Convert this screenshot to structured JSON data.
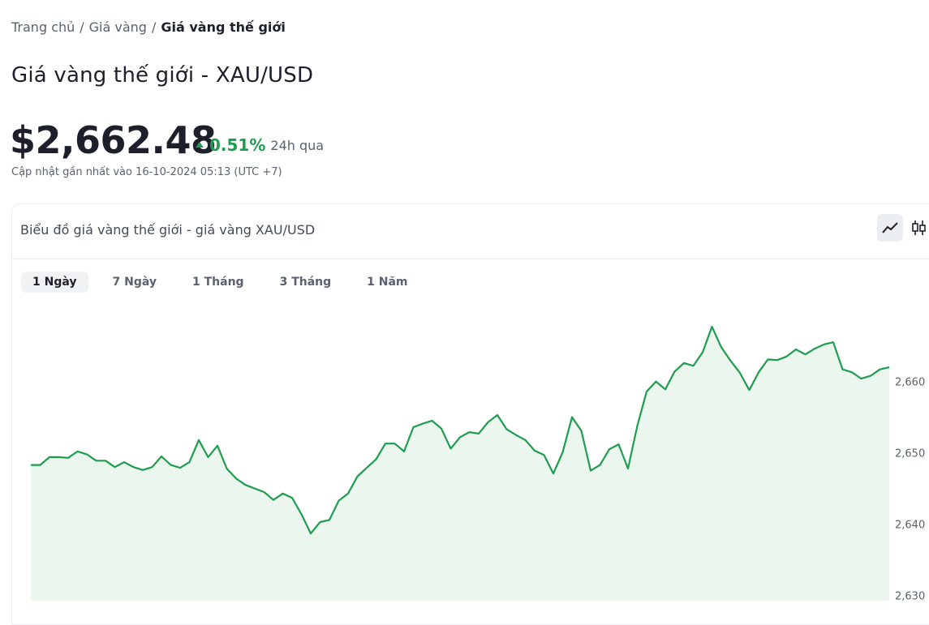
{
  "breadcrumb": {
    "items": [
      "Trang chủ",
      "Giá vàng",
      "Giá vàng thế giới"
    ],
    "separator": "/"
  },
  "header": {
    "title": "Giá vàng thế giới - XAU/USD"
  },
  "quote": {
    "price": "$2,662.48",
    "change": "0.51%",
    "period": "24h qua",
    "updated": "Cập nhật gần nhất vào 16-10-2024 05:13 (UTC +7)"
  },
  "card": {
    "title": "Biểu đồ giá vàng thế giới - giá vàng XAU/USD",
    "tabs": [
      "1 Ngày",
      "7 Ngày",
      "1 Tháng",
      "3 Tháng",
      "1 Năm"
    ]
  },
  "chart_data": {
    "type": "line",
    "color": "#1f9d4f",
    "area_color": "#eaf6ee",
    "grid": false,
    "values": [
      2648.0,
      2648.0,
      2649.1,
      2649.1,
      2649.0,
      2649.9,
      2649.5,
      2648.6,
      2648.6,
      2647.7,
      2648.4,
      2647.7,
      2647.3,
      2647.7,
      2649.2,
      2648.0,
      2647.6,
      2648.4,
      2651.5,
      2649.1,
      2650.7,
      2647.5,
      2646.1,
      2645.2,
      2644.7,
      2644.2,
      2643.1,
      2644.0,
      2643.4,
      2641.1,
      2638.4,
      2640.0,
      2640.3,
      2643.0,
      2644.0,
      2646.4,
      2647.6,
      2648.8,
      2651.0,
      2651.0,
      2649.9,
      2653.3,
      2653.8,
      2654.2,
      2653.1,
      2650.3,
      2651.9,
      2652.6,
      2652.4,
      2654.0,
      2655.0,
      2653.0,
      2652.2,
      2651.5,
      2650.0,
      2649.4,
      2646.8,
      2649.8,
      2654.7,
      2652.8,
      2647.2,
      2648.0,
      2650.2,
      2650.9,
      2647.5,
      2653.5,
      2658.3,
      2659.7,
      2658.6,
      2661.1,
      2662.3,
      2661.9,
      2663.8,
      2667.4,
      2664.5,
      2662.6,
      2660.9,
      2658.5,
      2661.0,
      2662.8,
      2662.7,
      2663.2,
      2664.2,
      2663.5,
      2664.3,
      2664.9,
      2665.2,
      2661.4,
      2661.0,
      2660.1,
      2660.5,
      2661.4,
      2661.7
    ],
    "ylim": [
      2629,
      2671
    ],
    "yticks": [
      {
        "value": 2630,
        "label": "2,630"
      },
      {
        "value": 2640,
        "label": "2,640"
      },
      {
        "value": 2650,
        "label": "2,650"
      },
      {
        "value": 2660,
        "label": "2,660"
      }
    ]
  }
}
